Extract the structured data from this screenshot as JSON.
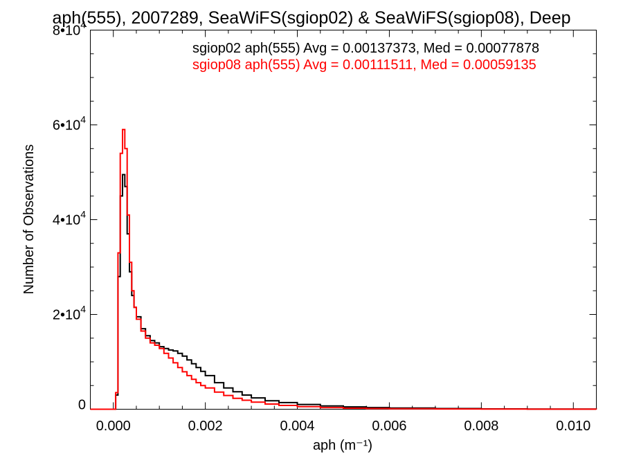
{
  "chart_data": {
    "type": "line",
    "title": "aph(555), 2007289, SeaWiFS(sgiop02) & SeaWiFS(sgiop08), Deep",
    "xlabel": "aph (m⁻¹)",
    "ylabel": "Number of Observations",
    "xlim": [
      -0.0005,
      0.0105
    ],
    "ylim": [
      0,
      80000
    ],
    "x_ticks": [
      {
        "value": 0.0,
        "label": "0.000"
      },
      {
        "value": 0.002,
        "label": "0.002"
      },
      {
        "value": 0.004,
        "label": "0.004"
      },
      {
        "value": 0.006,
        "label": "0.006"
      },
      {
        "value": 0.008,
        "label": "0.008"
      },
      {
        "value": 0.01,
        "label": "0.010"
      }
    ],
    "y_ticks": [
      {
        "value": 0,
        "mantissa": "0",
        "exponent": ""
      },
      {
        "value": 20000,
        "mantissa": "2•10",
        "exponent": "4"
      },
      {
        "value": 40000,
        "mantissa": "4•10",
        "exponent": "4"
      },
      {
        "value": 60000,
        "mantissa": "6•10",
        "exponent": "4"
      },
      {
        "value": 80000,
        "mantissa": "8•10",
        "exponent": "4"
      }
    ],
    "grid": false,
    "legend_position": "top-right",
    "annotations": [
      {
        "text": "sgiop02 aph(555) Avg = 0.00137373, Med = 0.00077878",
        "color": "#000000"
      },
      {
        "text": "sgiop08 aph(555) Avg = 0.00111511, Med = 0.00059135",
        "color": "#ff0000"
      }
    ],
    "series": [
      {
        "color": "#000000",
        "x": [
          -0.0005,
          0.0,
          5e-05,
          0.0001,
          0.00015,
          0.0002,
          0.00025,
          0.0003,
          0.00035,
          0.0004,
          0.00045,
          0.0005,
          0.0006,
          0.0007,
          0.0008,
          0.0009,
          0.001,
          0.0011,
          0.0012,
          0.0013,
          0.0014,
          0.0015,
          0.0016,
          0.0017,
          0.0018,
          0.0019,
          0.002,
          0.0022,
          0.0024,
          0.0026,
          0.0028,
          0.003,
          0.0033,
          0.0036,
          0.004,
          0.0045,
          0.005,
          0.0055,
          0.006,
          0.007,
          0.008,
          0.009,
          0.0105
        ],
        "values": [
          0,
          0,
          3000,
          28000,
          45000,
          49500,
          47000,
          37000,
          29000,
          24000,
          21500,
          19500,
          17000,
          15500,
          14500,
          14000,
          13200,
          12800,
          12500,
          12300,
          11800,
          11200,
          10400,
          9600,
          8800,
          8000,
          7100,
          5600,
          4500,
          3700,
          3000,
          2400,
          1800,
          1400,
          1000,
          700,
          500,
          350,
          250,
          150,
          80,
          40,
          0
        ]
      },
      {
        "color": "#ff0000",
        "x": [
          -0.0005,
          0.0,
          5e-05,
          0.0001,
          0.00015,
          0.0002,
          0.00025,
          0.0003,
          0.00035,
          0.0004,
          0.00045,
          0.0005,
          0.0006,
          0.0007,
          0.0008,
          0.0009,
          0.001,
          0.0011,
          0.0012,
          0.0013,
          0.0014,
          0.0015,
          0.0016,
          0.0017,
          0.0018,
          0.0019,
          0.002,
          0.0022,
          0.0024,
          0.0026,
          0.0028,
          0.003,
          0.0033,
          0.0036,
          0.004,
          0.0045,
          0.005,
          0.0055,
          0.006,
          0.007,
          0.008,
          0.009,
          0.0105
        ],
        "values": [
          0,
          0,
          3500,
          33000,
          54000,
          59000,
          55000,
          41000,
          31000,
          25000,
          21500,
          19000,
          16500,
          15000,
          14000,
          13500,
          12800,
          11800,
          10800,
          9800,
          8800,
          7900,
          7100,
          6300,
          5600,
          5000,
          4500,
          3600,
          2900,
          2300,
          1900,
          1500,
          1100,
          800,
          550,
          350,
          220,
          150,
          100,
          60,
          30,
          15,
          0
        ]
      }
    ]
  }
}
